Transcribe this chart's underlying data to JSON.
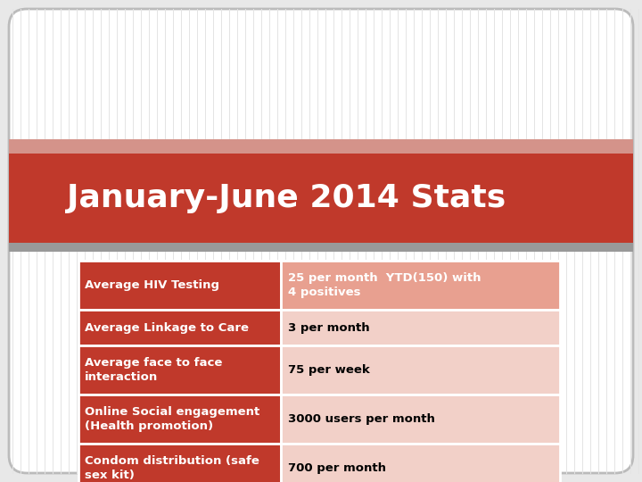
{
  "title": "January-June 2014 Stats",
  "title_bg_color": "#C0392B",
  "title_text_color": "#FFFFFF",
  "slide_bg_color": "#E8E8E8",
  "slide_border_color": "#AAAAAA",
  "slide_inner_color": "#FFFFFF",
  "stripe_pink_color": "#D4938A",
  "stripe_gray_color": "#999999",
  "table_rows": [
    {
      "label": "Average HIV Testing",
      "value": "25 per month  YTD(150) with\n4 positives",
      "label_bg": "#C0392B",
      "value_bg": "#E8A090",
      "label_color": "#FFFFFF",
      "value_color": "#FFFFFF"
    },
    {
      "label": "Average Linkage to Care",
      "value": "3 per month",
      "label_bg": "#C0392B",
      "value_bg": "#F2D0C8",
      "label_color": "#FFFFFF",
      "value_color": "#000000"
    },
    {
      "label": "Average face to face\ninteraction",
      "value": "75 per week",
      "label_bg": "#C0392B",
      "value_bg": "#F2D0C8",
      "label_color": "#FFFFFF",
      "value_color": "#000000"
    },
    {
      "label": "Online Social engagement\n(Health promotion)",
      "value": "3000 users per month",
      "label_bg": "#C0392B",
      "value_bg": "#F2D0C8",
      "label_color": "#FFFFFF",
      "value_color": "#000000"
    },
    {
      "label": "Condom distribution (safe\nsex kit)",
      "value": "700 per month",
      "label_bg": "#C0392B",
      "value_bg": "#F2D0C8",
      "label_color": "#FFFFFF",
      "value_color": "#000000"
    }
  ]
}
